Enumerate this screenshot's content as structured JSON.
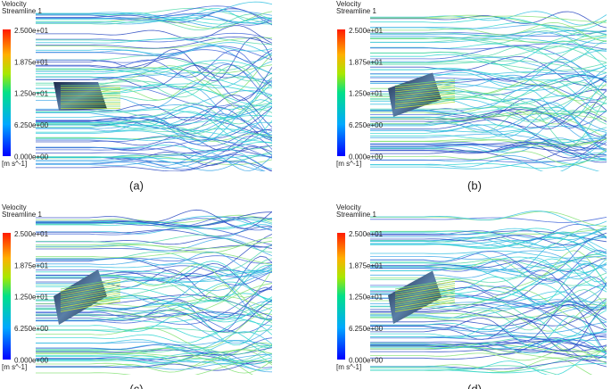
{
  "panels": [
    {
      "legend": {
        "title": "Velocity",
        "subtitle": "Streamline 1",
        "labels": [
          "2.500e+01",
          "1.875e+01",
          "1.250e+01",
          "6.250e+00",
          "0.000e+00"
        ],
        "unit": "[m s^-1]"
      },
      "caption": "(a)"
    },
    {
      "legend": {
        "title": "Velocity",
        "subtitle": "Streamline 1",
        "labels": [
          "2.500e+01",
          "1.875e+01",
          "1.250e+01",
          "6.250e+00",
          "0.000e+00"
        ],
        "unit": "[m s^-1]"
      },
      "caption": "(b)"
    },
    {
      "legend": {
        "title": "Velocity",
        "subtitle": "Streamline 1",
        "labels": [
          "2.500e+01",
          "1.875e+01",
          "1.250e+01",
          "6.250e+00",
          "0.000e+00"
        ],
        "unit": "[m s^-1]"
      },
      "caption": "(c)"
    },
    {
      "legend": {
        "title": "Velocity",
        "subtitle": "Streamline 1",
        "labels": [
          "2.500e+01",
          "1.875e+01",
          "1.250e+01",
          "6.250e+00",
          "0.000e+00"
        ],
        "unit": "[m s^-1]"
      },
      "caption": "(d)"
    }
  ]
}
